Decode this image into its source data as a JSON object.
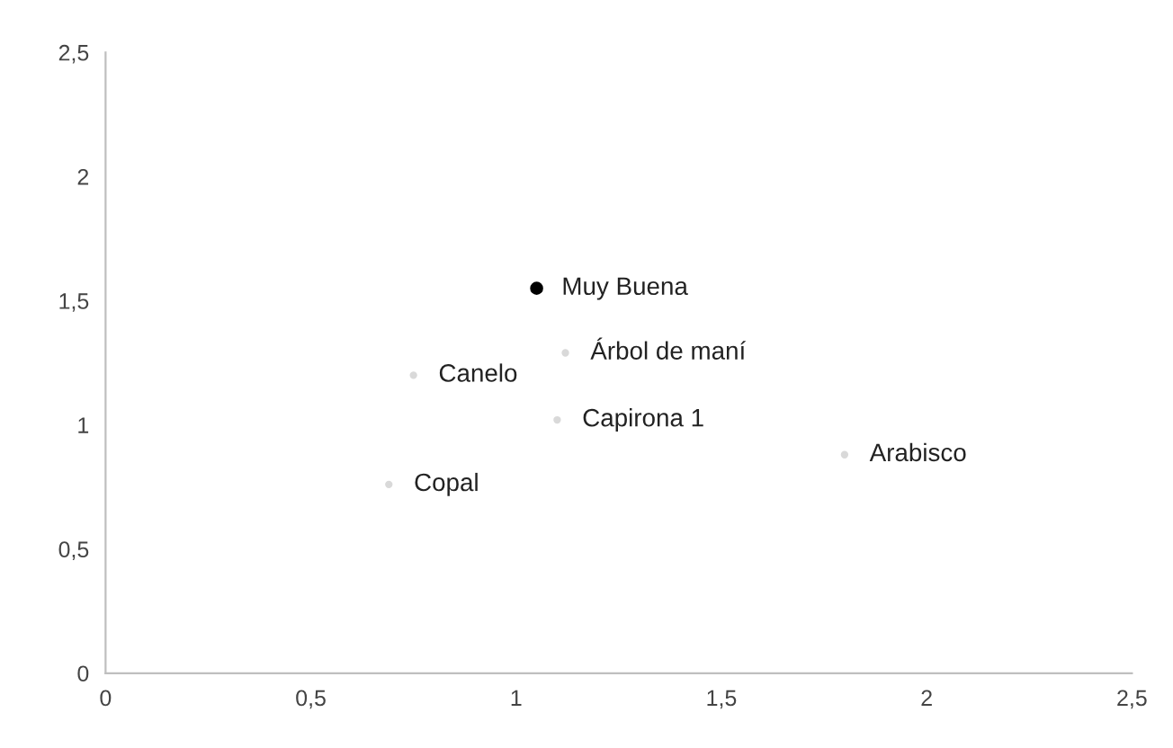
{
  "chart_data": {
    "type": "scatter",
    "x": [
      1.05
    ],
    "series": [
      {
        "color": "#000000",
        "values": [
          1.55
        ],
        "value_labels": [
          "Muy Buena"
        ]
      },
      {
        "color": "#d9d9d9",
        "x": [
          0.75,
          1.12,
          1.1,
          1.8,
          0.69
        ],
        "values": [
          1.2,
          1.29,
          1.02,
          0.88,
          0.76
        ],
        "value_labels": [
          "Canelo",
          "Árbol de maní",
          "Capirona 1",
          "Arabisco",
          "Copal"
        ]
      }
    ],
    "marker": "circle",
    "xlim": [
      0,
      2.5
    ],
    "ylim": [
      0,
      2.5
    ],
    "xticks": [
      0,
      {
        "value": 0.5,
        "label": "0,5"
      },
      1,
      {
        "value": 1.5,
        "label": "1,5"
      },
      2,
      {
        "value": 2.5,
        "label": "2,5"
      }
    ],
    "yticks": [
      0,
      {
        "value": 0.5,
        "label": "0,5"
      },
      1,
      {
        "value": 1.5,
        "label": "1,5"
      },
      2,
      {
        "value": 2.5,
        "label": "2,5"
      }
    ],
    "grid": false,
    "legend": false
  }
}
